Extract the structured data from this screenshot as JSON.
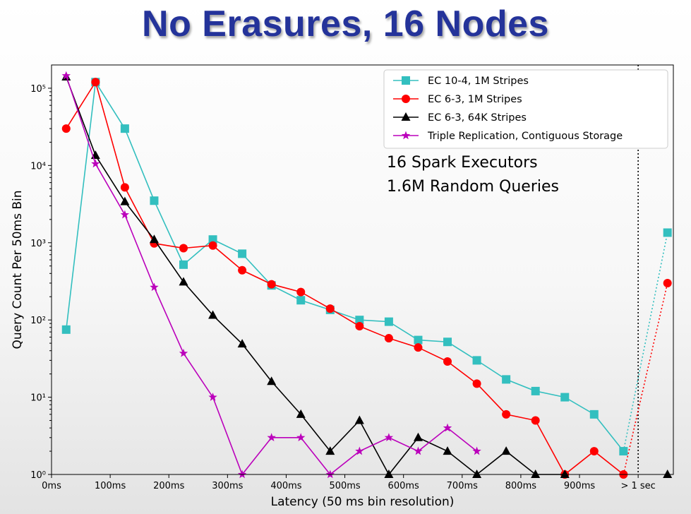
{
  "slide": {
    "title": "No Erasures, 16 Nodes"
  },
  "chart_data": {
    "type": "line",
    "title": "",
    "xlabel": "Latency (50 ms bin resolution)",
    "ylabel": "Query Count Per 50ms Bin",
    "y_scale": "log",
    "ylim": [
      1,
      200000
    ],
    "xlim": [
      0,
      1060
    ],
    "x_tick_values": [
      0,
      100,
      200,
      300,
      400,
      500,
      600,
      700,
      800,
      900,
      1000
    ],
    "x_tick_labels": [
      "0ms",
      "100ms",
      "200ms",
      "300ms",
      "400ms",
      "500ms",
      "600ms",
      "700ms",
      "800ms",
      "900ms",
      "> 1 sec"
    ],
    "y_ticks": [
      1,
      10,
      100,
      1000,
      10000,
      100000
    ],
    "y_tick_labels": [
      "10⁰",
      "10¹",
      "10²",
      "10³",
      "10⁴",
      "10⁵"
    ],
    "cutoff_line_x": 1000,
    "overflow_x": 1050,
    "x": [
      25,
      75,
      125,
      175,
      225,
      275,
      325,
      375,
      425,
      475,
      525,
      575,
      625,
      675,
      725,
      775,
      825,
      875,
      925,
      975
    ],
    "series": [
      {
        "name": "EC 10-4, 1M Stripes",
        "color": "#33bfbf",
        "marker": "square",
        "values": [
          75,
          120000,
          30000,
          3500,
          520,
          1100,
          720,
          280,
          180,
          135,
          100,
          95,
          55,
          52,
          30,
          17,
          12,
          10,
          6,
          2
        ],
        "overflow_value": 1350
      },
      {
        "name": "EC 6-3, 1M Stripes",
        "color": "#ff0000",
        "marker": "circle",
        "values": [
          30000,
          120000,
          5200,
          980,
          850,
          920,
          440,
          290,
          230,
          140,
          83,
          58,
          44,
          29,
          15,
          6,
          5,
          1,
          2,
          1
        ],
        "overflow_value": 300
      },
      {
        "name": "EC 6-3, 64K Stripes",
        "color": "#000000",
        "marker": "triangle",
        "values": [
          140000,
          13500,
          3400,
          1100,
          310,
          115,
          49,
          16,
          6,
          2,
          5,
          1,
          3,
          2,
          1,
          2,
          1,
          1,
          null,
          null
        ],
        "overflow_value": 1
      },
      {
        "name": "Triple Replication, Contiguous Storage",
        "color": "#bb00bb",
        "marker": "star",
        "values": [
          145000,
          10500,
          2300,
          265,
          37,
          10,
          1,
          3,
          3,
          1,
          2,
          3,
          2,
          4,
          2,
          null,
          null,
          null,
          null,
          null
        ],
        "overflow_value": null
      }
    ],
    "annotations": [
      "16 Spark Executors",
      "1.6M Random Queries"
    ],
    "legend_position": "top-right",
    "grid": false
  }
}
